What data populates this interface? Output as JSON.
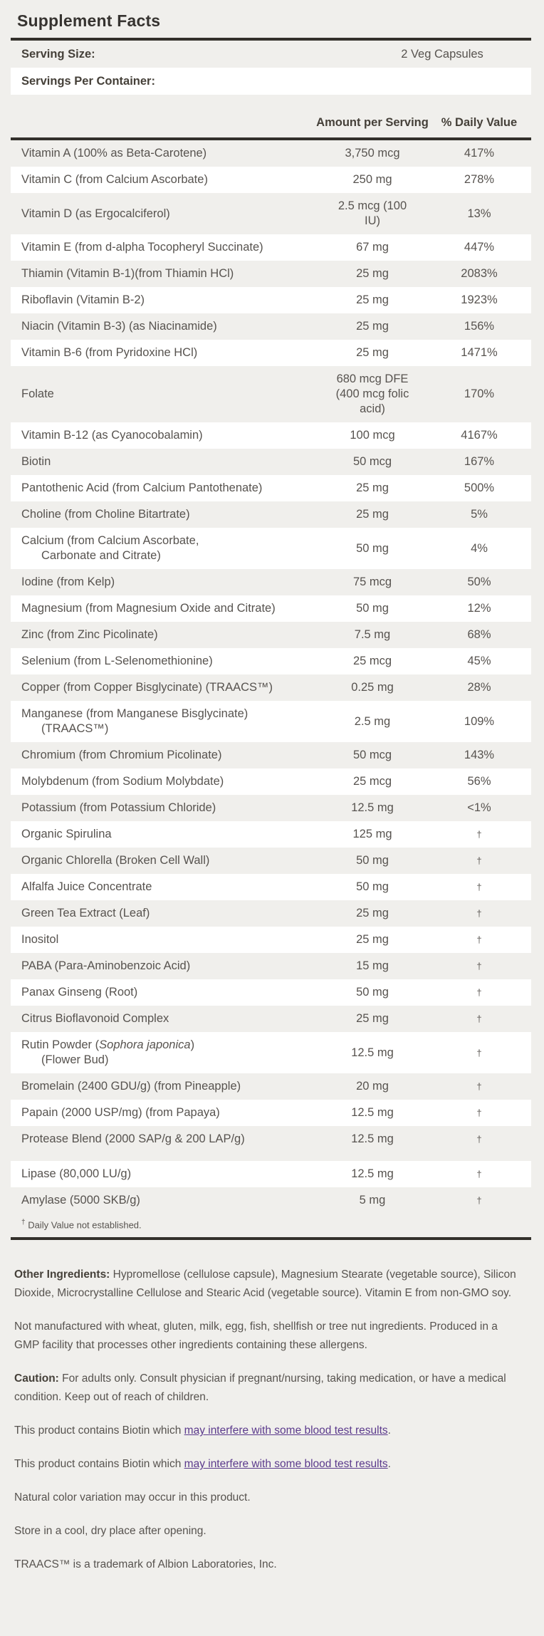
{
  "title": "Supplement Facts",
  "serving": {
    "size_label": "Serving Size:",
    "size_value": "2 Veg Capsules",
    "per_container_label": "Servings Per Container:",
    "per_container_value": ""
  },
  "table": {
    "col_amount": "Amount per Serving",
    "col_dv": "% Daily Value",
    "rows": [
      {
        "name": "Vitamin A (100% as Beta-Carotene)",
        "amount": [
          "3,750 mcg"
        ],
        "dv": "417%"
      },
      {
        "name": "Vitamin C (from Calcium Ascorbate)",
        "amount": [
          "250 mg"
        ],
        "dv": "278%"
      },
      {
        "name": "Vitamin D (as Ergocalciferol)",
        "amount": [
          "2.5 mcg (100",
          "IU)"
        ],
        "dv": "13%"
      },
      {
        "name": "Vitamin E (from d-alpha Tocopheryl Succinate)",
        "amount": [
          "67 mg"
        ],
        "dv": "447%"
      },
      {
        "name": "Thiamin (Vitamin B-1)(from Thiamin HCl)",
        "amount": [
          "25 mg"
        ],
        "dv": "2083%"
      },
      {
        "name": "Riboflavin (Vitamin B-2)",
        "amount": [
          "25 mg"
        ],
        "dv": "1923%"
      },
      {
        "name": "Niacin (Vitamin B-3) (as Niacinamide)",
        "amount": [
          "25 mg"
        ],
        "dv": "156%"
      },
      {
        "name": "Vitamin B-6 (from Pyridoxine HCl)",
        "amount": [
          "25 mg"
        ],
        "dv": "1471%"
      },
      {
        "name": "Folate",
        "amount": [
          "680 mcg DFE",
          "(400 mcg folic",
          "acid)"
        ],
        "dv": "170%"
      },
      {
        "name": "Vitamin B-12 (as Cyanocobalamin)",
        "amount": [
          "100 mcg"
        ],
        "dv": "4167%"
      },
      {
        "name": "Biotin",
        "amount": [
          "50 mcg"
        ],
        "dv": "167%"
      },
      {
        "name": "Pantothenic Acid (from Calcium Pantothenate)",
        "amount": [
          "25 mg"
        ],
        "dv": "500%"
      },
      {
        "name": "Choline (from Choline Bitartrate)",
        "amount": [
          "25 mg"
        ],
        "dv": "5%"
      },
      {
        "name": "Calcium (from Calcium Ascorbate,",
        "name2": "Carbonate and Citrate)",
        "amount": [
          "50 mg"
        ],
        "dv": "4%"
      },
      {
        "name": "Iodine (from Kelp)",
        "amount": [
          "75 mcg"
        ],
        "dv": "50%"
      },
      {
        "name": "Magnesium (from Magnesium Oxide and Citrate)",
        "amount": [
          "50 mg"
        ],
        "dv": "12%"
      },
      {
        "name": "Zinc (from Zinc Picolinate)",
        "amount": [
          "7.5 mg"
        ],
        "dv": "68%"
      },
      {
        "name": "Selenium (from L-Selenomethionine)",
        "amount": [
          "25 mcg"
        ],
        "dv": "45%"
      },
      {
        "name": "Copper (from Copper Bisglycinate) (TRAACS™)",
        "amount": [
          "0.25 mg"
        ],
        "dv": "28%"
      },
      {
        "name": "Manganese (from Manganese Bisglycinate)",
        "name2": "(TRAACS™)",
        "amount": [
          "2.5 mg"
        ],
        "dv": "109%"
      },
      {
        "name": "Chromium (from Chromium Picolinate)",
        "amount": [
          "50 mcg"
        ],
        "dv": "143%"
      },
      {
        "name": "Molybdenum (from Sodium Molybdate)",
        "amount": [
          "25 mcg"
        ],
        "dv": "56%"
      },
      {
        "name": "Potassium (from Potassium Chloride)",
        "amount": [
          "12.5 mg"
        ],
        "dv": "<1%"
      },
      {
        "name": "Organic Spirulina",
        "amount": [
          "125 mg"
        ],
        "dv": "†"
      },
      {
        "name": "Organic Chlorella (Broken Cell Wall)",
        "amount": [
          "50 mg"
        ],
        "dv": "†"
      },
      {
        "name": "Alfalfa Juice Concentrate",
        "amount": [
          "50 mg"
        ],
        "dv": "†"
      },
      {
        "name": "Green Tea Extract (Leaf)",
        "amount": [
          "25 mg"
        ],
        "dv": "†"
      },
      {
        "name": "Inositol",
        "amount": [
          "25 mg"
        ],
        "dv": "†"
      },
      {
        "name": "PABA (Para-Aminobenzoic Acid)",
        "amount": [
          "15 mg"
        ],
        "dv": "†"
      },
      {
        "name": "Panax Ginseng (Root)",
        "amount": [
          "50 mg"
        ],
        "dv": "†"
      },
      {
        "name": "Citrus Bioflavonoid Complex",
        "amount": [
          "25 mg"
        ],
        "dv": "†"
      },
      {
        "name": "Rutin Powder (Sophora japonica)",
        "em": "Sophora japonica",
        "name2": "(Flower Bud)",
        "amount": [
          "12.5 mg"
        ],
        "dv": "†"
      },
      {
        "name": "Bromelain (2400 GDU/g) (from Pineapple)",
        "amount": [
          "20 mg"
        ],
        "dv": "†"
      },
      {
        "name": "Papain (2000 USP/mg) (from Papaya)",
        "amount": [
          "12.5 mg"
        ],
        "dv": "†"
      },
      {
        "name": "Protease Blend (2000 SAP/g & 200 LAP/g)",
        "amount": [
          "12.5 mg"
        ],
        "dv": "†"
      },
      {
        "name": "Lipase (80,000 LU/g)",
        "amount": [
          "12.5 mg"
        ],
        "dv": "†"
      },
      {
        "name": "Amylase (5000 SKB/g)",
        "amount": [
          "5 mg"
        ],
        "dv": "†"
      }
    ],
    "footnote_symbol": "†",
    "footnote_text": "Daily Value not established."
  },
  "paragraphs": [
    {
      "lead": "Other Ingredients:",
      "text": "Hypromellose (cellulose capsule), Magnesium Stearate (vegetable source), Silicon Dioxide, Microcrystalline Cellulose and Stearic Acid (vegetable source). Vitamin E from non-GMO soy."
    },
    {
      "lead": "",
      "text": "Not manufactured with wheat, gluten, milk, egg, fish, shellfish or tree nut ingredients. Produced in a GMP facility that processes other ingredients containing these allergens."
    },
    {
      "lead": "Caution:",
      "text": "For adults only. Consult physician if pregnant/nursing, taking medication, or have a medical condition. Keep out of reach of children."
    }
  ],
  "biotin_notes": [
    {
      "prefix": "This product contains Biotin which ",
      "link_text": "may interfere with some blood test results",
      "suffix": "."
    },
    {
      "prefix": "This product contains Biotin which ",
      "link_text": "may interfere with some blood test results",
      "suffix": "."
    }
  ],
  "closing_notes": [
    "Natural color variation may occur in this product.",
    "Store in a cool, dry place after opening.",
    "TRAACS™ is a trademark of Albion Laboratories, Inc."
  ],
  "colors": {
    "page_bg": "#f0efec",
    "row_white": "#ffffff",
    "rule_dark": "#33302b",
    "text_gray": "#57534f",
    "text_bold": "#454039",
    "link_purple": "#5b3a8c"
  }
}
